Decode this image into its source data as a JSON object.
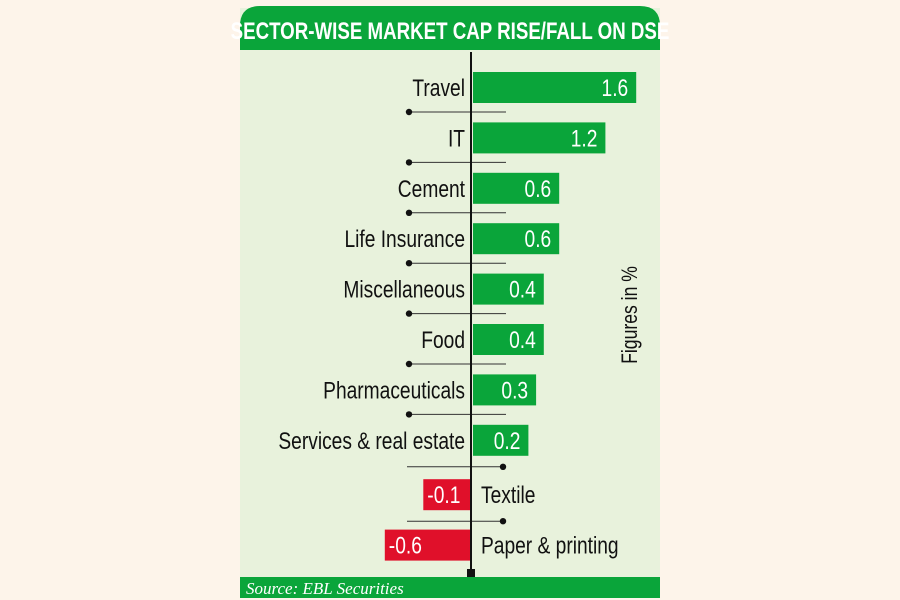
{
  "chart_data": {
    "type": "bar",
    "orientation": "horizontal",
    "title": "SECTOR-WISE MARKET CAP RISE/FALL ON DSE",
    "unit_note": "Figures in %",
    "source": "Source: EBL Securities",
    "categories": [
      "Travel",
      "IT",
      "Cement",
      "Life Insurance",
      "Miscellaneous",
      "Food",
      "Pharmaceuticals",
      "Services & real estate",
      "Textile",
      "Paper & printing"
    ],
    "values": [
      1.6,
      1.2,
      0.6,
      0.6,
      0.4,
      0.4,
      0.3,
      0.2,
      -0.1,
      -0.6
    ],
    "value_labels": [
      "1.6",
      "1.2",
      "0.6",
      "0.6",
      "0.4",
      "0.4",
      "0.3",
      "0.2",
      "-0.1",
      "-0.6"
    ],
    "colors": {
      "positive": "#0aa53a",
      "negative": "#e0102a",
      "header": "#0aa53a",
      "panel": "#e8f2dc",
      "axis": "#111111"
    }
  }
}
